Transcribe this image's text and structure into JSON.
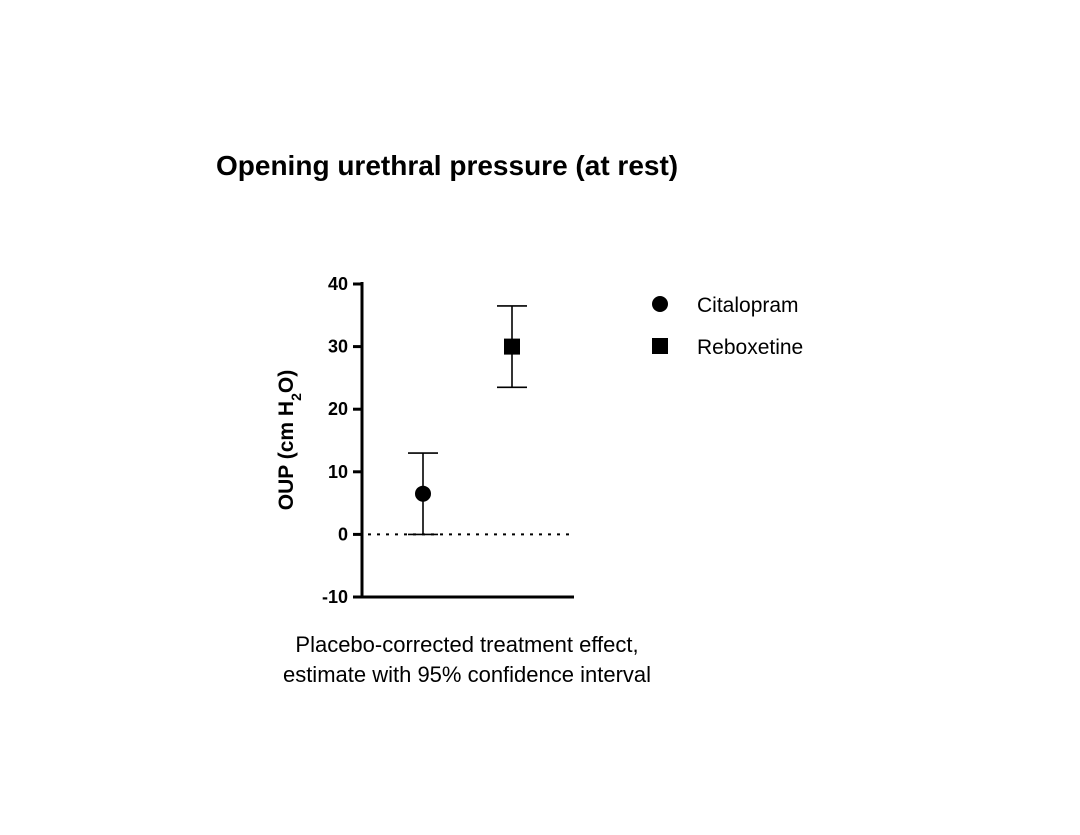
{
  "chart_data": {
    "type": "scatter",
    "title": "Opening urethral pressure (at rest)",
    "ylabel": {
      "prefix": "OUP (cm H",
      "subscript": "2",
      "suffix": "O)"
    },
    "xlabel_lines": [
      "Placebo-corrected treatment effect,",
      "estimate with 95% confidence interval"
    ],
    "ylim": [
      -10,
      40
    ],
    "yticks": [
      -10,
      0,
      10,
      20,
      30,
      40
    ],
    "reference_line": {
      "y": 0,
      "style": "dotted"
    },
    "grid": false,
    "legend_position": "right",
    "series": [
      {
        "name": "Citalopram",
        "marker": "circle",
        "estimate": 6.5,
        "ci_low": 0.0,
        "ci_high": 13.0
      },
      {
        "name": "Reboxetine",
        "marker": "square",
        "estimate": 30.0,
        "ci_low": 23.5,
        "ci_high": 36.5
      }
    ],
    "colors": {
      "marker": "#000000",
      "axis": "#000000"
    }
  }
}
